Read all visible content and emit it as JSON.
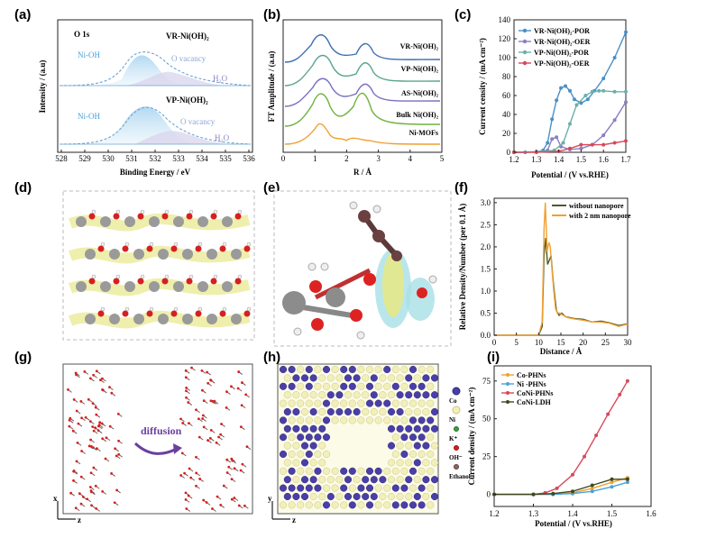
{
  "panels": {
    "a": {
      "letter": "(a)",
      "title": "O 1s",
      "xlabel": "Binding Energy / eV",
      "ylabel": "Intensity / (a.u)",
      "xticks": [
        "528",
        "529",
        "530",
        "531",
        "532",
        "533",
        "534",
        "535",
        "536"
      ],
      "top": {
        "label": "VR-Ni(OH)₂",
        "peaks": [
          "Ni-OH",
          "O vacancy",
          "H₂O"
        ]
      },
      "bottom": {
        "label": "VP-Ni(OH)₂",
        "peaks": [
          "Ni-OH",
          "O vacancy",
          "H₂O"
        ]
      }
    },
    "b": {
      "letter": "(b)",
      "xlabel": "R / Å",
      "ylabel": "FT Amplitude / (a.u)",
      "xticks": [
        "0",
        "1",
        "2",
        "3",
        "4",
        "5"
      ],
      "series": [
        "VR-Ni(OH)₂",
        "VP-Ni(OH)₂",
        "AS-Ni(OH)₂",
        "Bulk Ni(OH)₂",
        "Ni-MOFs"
      ]
    },
    "c": {
      "letter": "(c)",
      "xlabel": "Potential / (V vs.RHE)",
      "ylabel": "Current censity / (mA cm⁻²)",
      "xticks": [
        "1.2",
        "1.3",
        "1.4",
        "1.5",
        "1.6",
        "1.7"
      ],
      "yticks": [
        "0",
        "20",
        "40",
        "60",
        "80",
        "100",
        "120",
        "140"
      ],
      "legend": [
        "VR-Ni(OH)₂-POR",
        "VR-Ni(OH)₂-OER",
        "VP-Ni(OH)₂-POR",
        "VP-Ni(OH)₂-OER"
      ]
    },
    "d": {
      "letter": "(d)"
    },
    "e": {
      "letter": "(e)"
    },
    "f": {
      "letter": "(f)",
      "xlabel": "Distance / Å",
      "ylabel": "Relative Density/Number (per 0.1 Å)",
      "xticks": [
        "0",
        "5",
        "10",
        "15",
        "20",
        "25",
        "30"
      ],
      "yticks": [
        "0.0",
        "0.5",
        "1.0",
        "1.5",
        "2.0",
        "2.5",
        "3.0"
      ],
      "legend": [
        "without nanopore",
        "with 2 nm nanopore"
      ]
    },
    "g": {
      "letter": "(g)",
      "annotation": "diffusion",
      "axis_x": "x",
      "axis_z": "z"
    },
    "h": {
      "letter": "(h)",
      "legend": [
        "Co",
        "Ni",
        "K⁺",
        "OH⁻",
        "Ethanol"
      ],
      "axis_y": "y",
      "axis_z": "z"
    },
    "i": {
      "letter": "(i)",
      "xlabel": "Potential / (V vs.RHE)",
      "ylabel": "Current density / (mA cm⁻²)",
      "xticks": [
        "1.2",
        "1.3",
        "1.4",
        "1.5",
        "1.6"
      ],
      "yticks": [
        "0",
        "25",
        "50",
        "75"
      ],
      "legend": [
        "Co-PHNs",
        "Ni -PHNs",
        "CoNi-PHNs",
        "CoNi-LDH"
      ]
    }
  },
  "colors": {
    "vr_por": "#4a90c8",
    "vr_oer": "#8a7fc4",
    "vp_por": "#6bb0a8",
    "vp_oer": "#d9485a",
    "f_without": "#4d5a2a",
    "f_with": "#f0a030",
    "co": "#f0a030",
    "ni": "#4aa3d8",
    "coni": "#d9485a",
    "ldh": "#3d4a1e"
  },
  "chart_data": [
    {
      "type": "line",
      "panel": "c",
      "xlim": [
        1.2,
        1.7
      ],
      "ylim": [
        0,
        140
      ],
      "series": [
        {
          "name": "VR-Ni(OH)₂-POR",
          "x": [
            1.2,
            1.25,
            1.3,
            1.33,
            1.35,
            1.37,
            1.39,
            1.41,
            1.43,
            1.45,
            1.47,
            1.5,
            1.53,
            1.56,
            1.6,
            1.65,
            1.7
          ],
          "y": [
            0,
            0,
            0.5,
            2,
            10,
            35,
            55,
            68,
            70,
            65,
            56,
            52,
            56,
            65,
            78,
            100,
            127
          ]
        },
        {
          "name": "VR-Ni(OH)₂-OER",
          "x": [
            1.2,
            1.3,
            1.35,
            1.37,
            1.39,
            1.41,
            1.45,
            1.5,
            1.55,
            1.6,
            1.65,
            1.7
          ],
          "y": [
            0,
            0.5,
            2,
            14,
            16,
            6,
            3,
            4,
            8,
            18,
            34,
            53
          ]
        },
        {
          "name": "VP-Ni(OH)₂-POR",
          "x": [
            1.2,
            1.3,
            1.38,
            1.42,
            1.45,
            1.48,
            1.52,
            1.55,
            1.58,
            1.6,
            1.65,
            1.7
          ],
          "y": [
            0,
            0.5,
            2,
            10,
            30,
            50,
            60,
            64,
            65,
            65,
            64,
            64
          ]
        },
        {
          "name": "VP-Ni(OH)₂-OER",
          "x": [
            1.2,
            1.3,
            1.4,
            1.45,
            1.5,
            1.55,
            1.6,
            1.65,
            1.7
          ],
          "y": [
            0,
            0,
            1,
            4,
            8,
            8,
            8,
            10,
            12
          ]
        }
      ]
    },
    {
      "type": "line",
      "panel": "f",
      "xlim": [
        0,
        30
      ],
      "ylim": [
        0,
        3.1
      ],
      "series": [
        {
          "name": "without nanopore",
          "x": [
            0,
            10,
            10.8,
            11.2,
            11.6,
            12,
            12.4,
            12.8,
            13.2,
            13.6,
            14,
            14.6,
            15.2,
            16,
            18,
            20,
            22,
            24,
            26,
            28,
            30
          ],
          "y": [
            0,
            0,
            0.2,
            1.8,
            2.2,
            1.6,
            1.7,
            1.8,
            1.3,
            0.9,
            0.55,
            0.45,
            0.5,
            0.42,
            0.38,
            0.36,
            0.3,
            0.32,
            0.28,
            0.22,
            0.26
          ]
        },
        {
          "name": "with 2 nm nanopore",
          "x": [
            0,
            10,
            10.8,
            11.2,
            11.5,
            11.9,
            12.3,
            12.6,
            13,
            13.4,
            13.8,
            14.2,
            14.8,
            15.5,
            16.5,
            18,
            20,
            22,
            24,
            26,
            28,
            30
          ],
          "y": [
            0,
            0,
            0.3,
            2.4,
            3.0,
            1.9,
            2.1,
            2.0,
            1.5,
            1.0,
            0.6,
            0.5,
            0.5,
            0.45,
            0.4,
            0.37,
            0.34,
            0.3,
            0.3,
            0.27,
            0.2,
            0.25
          ]
        }
      ]
    },
    {
      "type": "line",
      "panel": "i",
      "xlim": [
        1.2,
        1.6
      ],
      "ylim": [
        -8,
        85
      ],
      "series": [
        {
          "name": "Co-PHNs",
          "x": [
            1.2,
            1.3,
            1.35,
            1.4,
            1.45,
            1.5,
            1.54
          ],
          "y": [
            0,
            0,
            0,
            1,
            4,
            8,
            11
          ]
        },
        {
          "name": "Ni -PHNs",
          "x": [
            1.2,
            1.3,
            1.35,
            1.4,
            1.45,
            1.5,
            1.54
          ],
          "y": [
            0,
            0,
            0,
            0.5,
            2,
            5,
            8
          ]
        },
        {
          "name": "CoNi-PHNs",
          "x": [
            1.2,
            1.3,
            1.33,
            1.36,
            1.4,
            1.43,
            1.46,
            1.49,
            1.52,
            1.54
          ],
          "y": [
            0,
            0,
            1,
            4,
            13,
            25,
            39,
            53,
            66,
            75
          ]
        },
        {
          "name": "CoNi-LDH",
          "x": [
            1.2,
            1.3,
            1.35,
            1.4,
            1.45,
            1.5,
            1.54
          ],
          "y": [
            0,
            0,
            0.5,
            2,
            6,
            10,
            10
          ]
        }
      ]
    }
  ]
}
